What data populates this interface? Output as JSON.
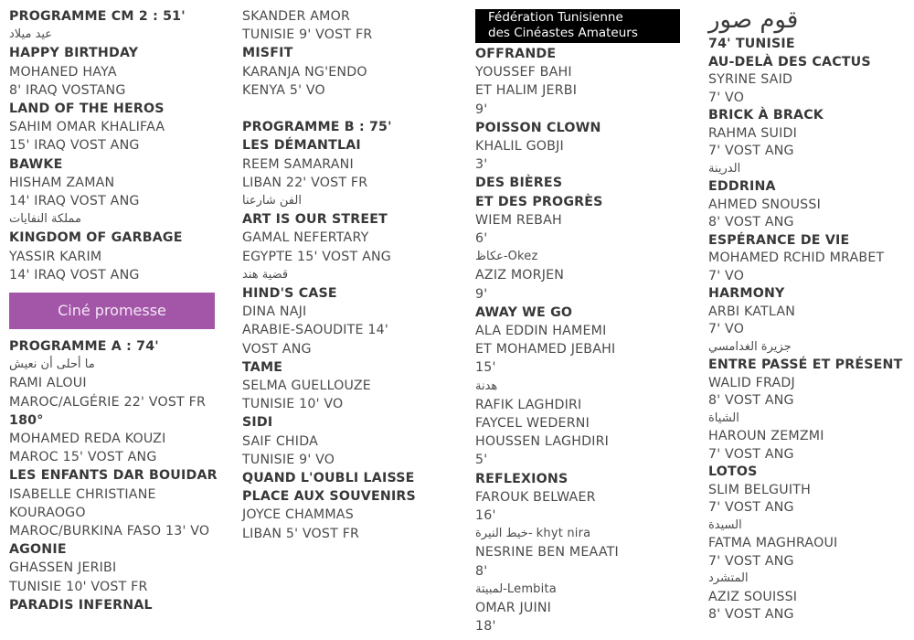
{
  "cine_promesse": "Ciné promesse",
  "federation": {
    "line1": "Fédération Tunisienne",
    "line2": "des Cinéastes Amateurs"
  },
  "col4_title": "قوم صور",
  "colors": {
    "purple_banner": "#a356a8",
    "black_banner": "#000000"
  },
  "columns": {
    "col1a": [
      {
        "t": "PROGRAMME CM 2 : 51'",
        "b": 1
      },
      {
        "t": "عيد ميلاد",
        "ar": 1
      },
      {
        "t": "HAPPY BIRTHDAY",
        "b": 1
      },
      {
        "t": "MOHANED HAYA"
      },
      {
        "t": "8' IRAQ VOSTANG"
      },
      {
        "t": "LAND OF THE HEROS",
        "b": 1
      },
      {
        "t": "SAHIM OMAR KHALIFAA"
      },
      {
        "t": "15' IRAQ VOST ANG"
      },
      {
        "t": "BAWKE",
        "b": 1
      },
      {
        "t": "HISHAM ZAMAN"
      },
      {
        "t": "14' IRAQ VOST ANG"
      },
      {
        "t": "مملكة النفايات",
        "ar": 1
      },
      {
        "t": "KINGDOM OF GARBAGE",
        "b": 1
      },
      {
        "t": "YASSIR KARIM"
      },
      {
        "t": "14' IRAQ VOST ANG"
      }
    ],
    "col1b": [
      {
        "t": "PROGRAMME A : 74'",
        "b": 1
      },
      {
        "t": "ما أحلى أن نعيش",
        "ar": 1
      },
      {
        "t": "RAMI ALOUI"
      },
      {
        "t": "MAROC/ALGÉRIE 22' VOST FR"
      },
      {
        "t": "180°",
        "b": 1
      },
      {
        "t": "MOHAMED REDA KOUZI"
      },
      {
        "t": "MAROC 15' VOST ANG"
      },
      {
        "t": "LES ENFANTS DAR BOUIDAR",
        "b": 1
      },
      {
        "t": "ISABELLE CHRISTIANE"
      },
      {
        "t": "KOURAOGO"
      },
      {
        "t": "MAROC/BURKINA FASO 13' VO"
      },
      {
        "t": "AGONIE",
        "b": 1
      },
      {
        "t": "GHASSEN JERIBI"
      },
      {
        "t": "TUNISIE 10' VOST FR"
      },
      {
        "t": "PARADIS INFERNAL",
        "b": 1
      }
    ],
    "col2": [
      {
        "t": "SKANDER AMOR"
      },
      {
        "t": "TUNISIE 9' VOST FR"
      },
      {
        "t": "MISFIT",
        "b": 1
      },
      {
        "t": "KARANJA NG'ENDO"
      },
      {
        "t": "KENYA 5' VO"
      },
      {
        "t": ""
      },
      {
        "t": "PROGRAMME B : 75'",
        "b": 1
      },
      {
        "t": "LES DÉMANTLAI",
        "b": 1
      },
      {
        "t": "REEM SAMARANI"
      },
      {
        "t": "LIBAN 22' VOST FR"
      },
      {
        "t": "الفن شارعنا",
        "ar": 1
      },
      {
        "t": "ART IS OUR STREET",
        "b": 1
      },
      {
        "t": "GAMAL NEFERTARY"
      },
      {
        "t": "EGYPTE 15' VOST ANG"
      },
      {
        "t": "قضية هند",
        "ar": 1
      },
      {
        "t": "HIND'S CASE",
        "b": 1
      },
      {
        "t": "DINA NAJI"
      },
      {
        "t": "ARABIE-SAOUDITE 14'"
      },
      {
        "t": "VOST ANG"
      },
      {
        "t": "TAME",
        "b": 1
      },
      {
        "t": "SELMA GUELLOUZE"
      },
      {
        "t": "TUNISIE 10' VO"
      },
      {
        "t": "SIDI",
        "b": 1
      },
      {
        "t": "SAIF CHIDA"
      },
      {
        "t": "TUNISIE 9' VO"
      },
      {
        "t": "QUAND L'OUBLI LAISSE",
        "b": 1
      },
      {
        "t": "PLACE AUX SOUVENIRS",
        "b": 1
      },
      {
        "t": "JOYCE CHAMMAS"
      },
      {
        "t": "LIBAN 5' VOST FR"
      }
    ],
    "col3": [
      {
        "t": "OFFRANDE",
        "b": 1
      },
      {
        "t": "YOUSSEF BAHI"
      },
      {
        "t": "ET HALIM JERBI"
      },
      {
        "t": "9'"
      },
      {
        "t": "POISSON CLOWN",
        "b": 1
      },
      {
        "t": "KHALIL GOBJI"
      },
      {
        "t": "3'"
      },
      {
        "t": "DES BIÈRES",
        "b": 1
      },
      {
        "t": "ET DES PROGRÈS",
        "b": 1
      },
      {
        "t": "WIEM REBAH"
      },
      {
        "t": "6'"
      },
      {
        "t": "عكاظ-Okez",
        "ar": 1
      },
      {
        "t": "AZIZ MORJEN"
      },
      {
        "t": "9'"
      },
      {
        "t": "AWAY WE GO",
        "b": 1
      },
      {
        "t": "ALA EDDIN HAMEMI"
      },
      {
        "t": "ET MOHAMED JEBAHI"
      },
      {
        "t": "15'"
      },
      {
        "t": "هدنة",
        "ar": 1
      },
      {
        "t": "RAFIK LAGHDIRI"
      },
      {
        "t": "FAYCEL WEDERNI"
      },
      {
        "t": "HOUSSEN LAGHDIRI"
      },
      {
        "t": "5'"
      },
      {
        "t": "REFLEXIONS",
        "b": 1
      },
      {
        "t": "FAROUK BELWAER"
      },
      {
        "t": "16'"
      },
      {
        "t": "خيط النيرة- khyt nira",
        "ar": 1
      },
      {
        "t": "NESRINE BEN MEAATI"
      },
      {
        "t": "8'"
      },
      {
        "t": "لمبيتة-Lembita",
        "ar": 1
      },
      {
        "t": "OMAR JUINI"
      },
      {
        "t": "18'"
      }
    ],
    "col4": [
      {
        "t": "74' TUNISIE",
        "b": 1
      },
      {
        "t": "AU-DELÀ DES CACTUS",
        "b": 1
      },
      {
        "t": "SYRINE SAID"
      },
      {
        "t": "7' VO"
      },
      {
        "t": "BRICK À BRACK",
        "b": 1
      },
      {
        "t": "RAHMA SUIDI"
      },
      {
        "t": "7' VOST ANG"
      },
      {
        "t": "الدرينة",
        "ar": 1
      },
      {
        "t": "EDDRINA",
        "b": 1
      },
      {
        "t": "AHMED SNOUSSI"
      },
      {
        "t": "8' VOST ANG"
      },
      {
        "t": "ESPÉRANCE DE VIE",
        "b": 1
      },
      {
        "t": "MOHAMED RCHID MRABET"
      },
      {
        "t": "7' VO"
      },
      {
        "t": "HARMONY",
        "b": 1
      },
      {
        "t": "ARBI KATLAN"
      },
      {
        "t": "7' VO"
      },
      {
        "t": "جزيرة الغدامسي",
        "ar": 1
      },
      {
        "t": "ENTRE PASSÉ ET PRÉSENT",
        "b": 1
      },
      {
        "t": "WALID FRADJ"
      },
      {
        "t": "8' VOST ANG"
      },
      {
        "t": "الشياة",
        "ar": 1
      },
      {
        "t": "HAROUN ZEMZMI"
      },
      {
        "t": "7' VOST ANG"
      },
      {
        "t": "LOTOS",
        "b": 1
      },
      {
        "t": "SLIM BELGUITH"
      },
      {
        "t": "7' VOST ANG"
      },
      {
        "t": "السيدة",
        "ar": 1
      },
      {
        "t": "FATMA MAGHRAOUI"
      },
      {
        "t": "7' VOST ANG"
      },
      {
        "t": "المتشرد",
        "ar": 1
      },
      {
        "t": "AZIZ SOUISSI"
      },
      {
        "t": "8' VOST ANG"
      }
    ]
  }
}
